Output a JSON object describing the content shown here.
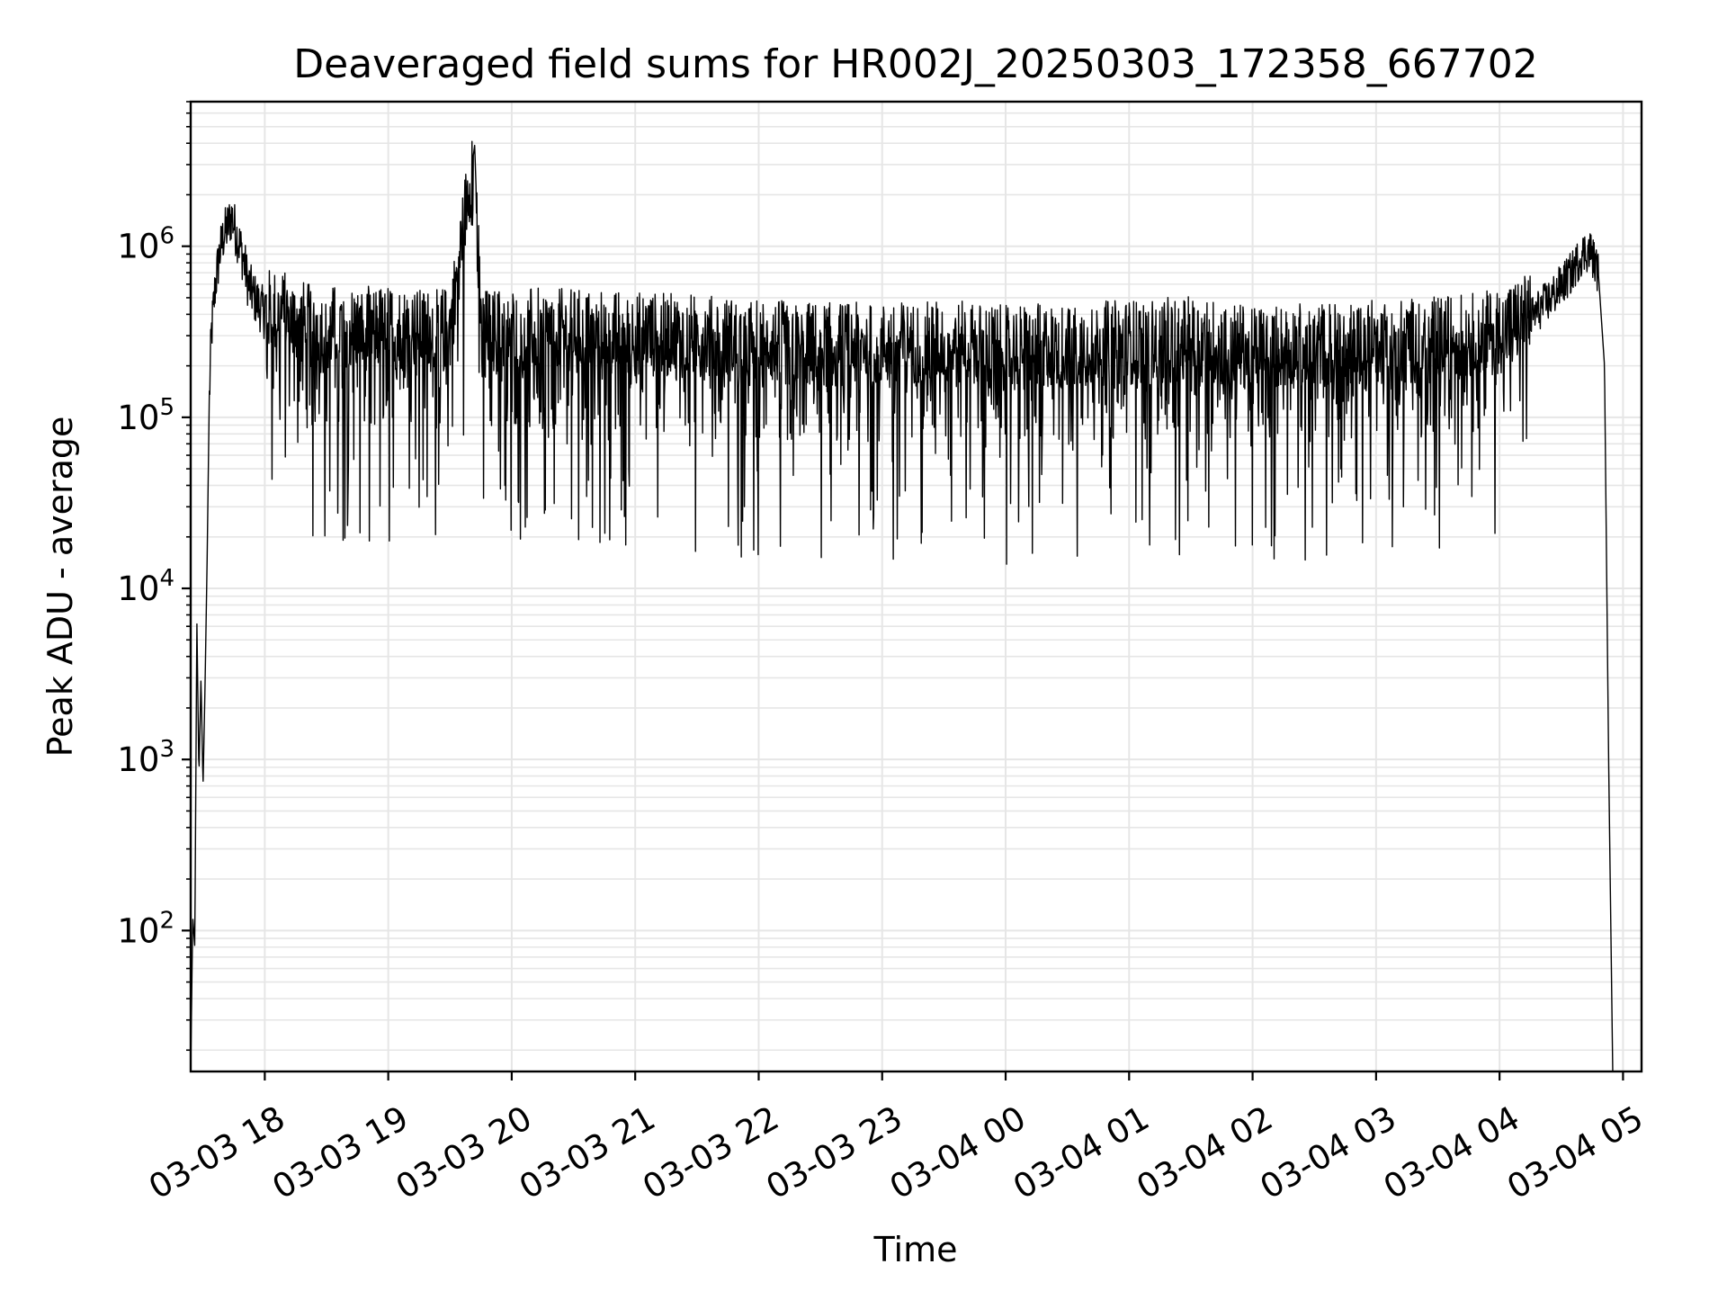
{
  "chart_data": {
    "type": "line",
    "title": "Deaveraged field sums for HR002J_20250303_172358_667702",
    "xlabel": "Time",
    "ylabel": "Peak ADU - average",
    "yscale": "log",
    "ylim": [
      15,
      7000000
    ],
    "xlim": [
      "2025-03-03 17:24",
      "2025-03-04 05:09"
    ],
    "grid": true,
    "line_color": "#000000",
    "grid_color": "#e6e6e6",
    "x_ticks": [
      {
        "value": "2025-03-03 18:00",
        "label": "03-03 18"
      },
      {
        "value": "2025-03-03 19:00",
        "label": "03-03 19"
      },
      {
        "value": "2025-03-03 20:00",
        "label": "03-03 20"
      },
      {
        "value": "2025-03-03 21:00",
        "label": "03-03 21"
      },
      {
        "value": "2025-03-03 22:00",
        "label": "03-03 22"
      },
      {
        "value": "2025-03-03 23:00",
        "label": "03-03 23"
      },
      {
        "value": "2025-03-04 00:00",
        "label": "03-04 00"
      },
      {
        "value": "2025-03-04 01:00",
        "label": "03-04 01"
      },
      {
        "value": "2025-03-04 02:00",
        "label": "03-04 02"
      },
      {
        "value": "2025-03-04 03:00",
        "label": "03-04 03"
      },
      {
        "value": "2025-03-04 04:00",
        "label": "03-04 04"
      },
      {
        "value": "2025-03-04 05:00",
        "label": "03-04 05"
      }
    ],
    "y_ticks": [
      {
        "value": 100,
        "base": "10",
        "exp": "2"
      },
      {
        "value": 1000,
        "base": "10",
        "exp": "3"
      },
      {
        "value": 10000,
        "base": "10",
        "exp": "4"
      },
      {
        "value": 100000,
        "base": "10",
        "exp": "5"
      },
      {
        "value": 1000000,
        "base": "10",
        "exp": "6"
      }
    ],
    "series": [
      {
        "x": [
          "2025-03-03 17:24:00",
          "2025-03-03 17:25:00",
          "2025-03-03 17:26:00",
          "2025-03-03 17:27:00",
          "2025-03-03 17:28:00",
          "2025-03-03 17:29:00",
          "2025-03-03 17:30:00",
          "2025-03-03 17:31:00",
          "2025-03-03 17:32:00",
          "2025-03-03 17:33:00",
          "2025-03-03 17:34:00",
          "2025-03-03 17:36:00",
          "2025-03-03 17:38:00",
          "2025-03-03 17:40:00",
          "2025-03-03 17:42:00",
          "2025-03-03 17:44:00",
          "2025-03-03 17:46:00",
          "2025-03-03 17:48:00",
          "2025-03-03 17:50:00",
          "2025-03-03 17:52:00",
          "2025-03-03 17:55:00",
          "2025-03-03 18:00:00",
          "2025-03-03 18:10:00",
          "2025-03-03 18:20:00",
          "2025-03-03 18:28:00",
          "2025-03-03 18:35:00",
          "2025-03-03 18:45:00",
          "2025-03-03 19:00:00",
          "2025-03-03 19:15:00",
          "2025-03-03 19:30:00",
          "2025-03-03 19:42:00",
          "2025-03-03 19:45:00",
          "2025-03-03 20:00:00",
          "2025-03-03 20:30:00",
          "2025-03-03 21:00:00",
          "2025-03-03 21:30:00",
          "2025-03-03 22:00:00",
          "2025-03-03 22:30:00",
          "2025-03-03 23:00:00",
          "2025-03-03 23:30:00",
          "2025-03-04 00:00:00",
          "2025-03-04 00:30:00",
          "2025-03-04 01:00:00",
          "2025-03-04 01:30:00",
          "2025-03-04 02:00:00",
          "2025-03-04 02:30:00",
          "2025-03-04 03:00:00",
          "2025-03-04 03:30:00",
          "2025-03-04 04:00:00",
          "2025-03-04 04:15:00",
          "2025-03-04 04:25:00",
          "2025-03-04 04:35:00",
          "2025-03-04 04:40:00",
          "2025-03-04 04:44:00",
          "2025-03-04 04:48:00",
          "2025-03-04 04:51:00",
          "2025-03-04 04:53:00",
          "2025-03-04 04:55:00"
        ],
        "y": [
          15,
          120,
          80,
          6500,
          800,
          3000,
          700,
          2800,
          15000,
          120000,
          300000,
          600000,
          900000,
          1150000,
          1300000,
          1500000,
          1200000,
          1000000,
          800000,
          600000,
          500000,
          400000,
          380000,
          330000,
          300000,
          320000,
          310000,
          320000,
          300000,
          310000,
          3900000,
          300000,
          310000,
          300000,
          290000,
          280000,
          260000,
          250000,
          250000,
          260000,
          240000,
          250000,
          260000,
          270000,
          240000,
          250000,
          260000,
          270000,
          300000,
          380000,
          500000,
          700000,
          900000,
          950000,
          700000,
          200000,
          1000,
          15
        ]
      }
    ]
  }
}
